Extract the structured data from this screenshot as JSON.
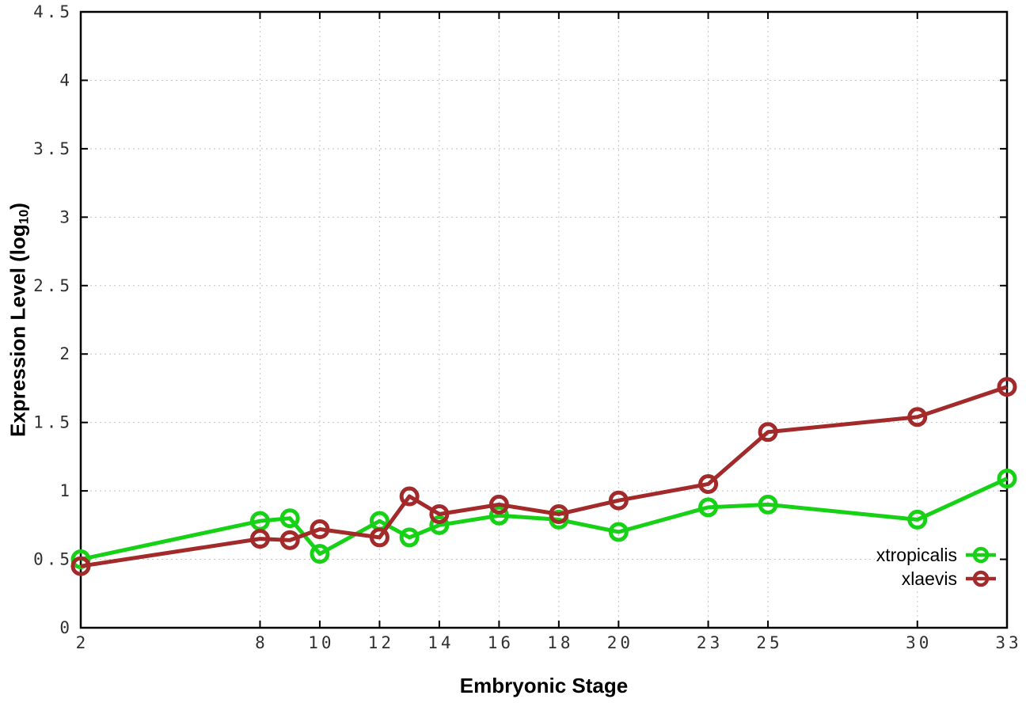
{
  "colors": {
    "background": "#ffffff",
    "axis": "#000000",
    "grid": "#c4c4c4",
    "tick_text": "#303030",
    "green_series": "#17d117",
    "red_series": "#a32a2a"
  },
  "chart_data": {
    "type": "line",
    "title": "",
    "xlabel": "Embryonic Stage",
    "ylabel": "Expression Level (log10)",
    "ylabel_prefix": "Expression Level (log",
    "ylabel_sub": "10",
    "ylabel_suffix": ")",
    "xlim": [
      2,
      33
    ],
    "ylim": [
      0,
      4.5
    ],
    "grid": true,
    "legend_position": "inside-bottom-right",
    "x_ticks": [
      {
        "value": 2,
        "label": "2"
      },
      {
        "value": 8,
        "label": "8"
      },
      {
        "value": 10,
        "label": "10"
      },
      {
        "value": 12,
        "label": "12"
      },
      {
        "value": 14,
        "label": "14"
      },
      {
        "value": 16,
        "label": "16"
      },
      {
        "value": 18,
        "label": "18"
      },
      {
        "value": 20,
        "label": "20"
      },
      {
        "value": 23,
        "label": "23"
      },
      {
        "value": 25,
        "label": "25"
      },
      {
        "value": 30,
        "label": "30"
      },
      {
        "value": 33,
        "label": "33"
      }
    ],
    "y_ticks": [
      {
        "value": 0,
        "label": "0"
      },
      {
        "value": 0.5,
        "label": "0.5"
      },
      {
        "value": 1,
        "label": "1"
      },
      {
        "value": 1.5,
        "label": "1.5"
      },
      {
        "value": 2,
        "label": "2"
      },
      {
        "value": 2.5,
        "label": "2.5"
      },
      {
        "value": 3,
        "label": "3"
      },
      {
        "value": 3.5,
        "label": "3.5"
      },
      {
        "value": 4,
        "label": "4"
      },
      {
        "value": 4.5,
        "label": "4.5"
      }
    ],
    "x": [
      2,
      8,
      9,
      10,
      12,
      13,
      14,
      16,
      18,
      20,
      23,
      25,
      30,
      33
    ],
    "series": [
      {
        "name": "xtropicalis",
        "color": "#17d117",
        "marker": "open-circle",
        "values": [
          0.5,
          0.78,
          0.8,
          0.54,
          0.78,
          0.66,
          0.75,
          0.82,
          0.79,
          0.7,
          0.88,
          0.9,
          0.79,
          1.09
        ]
      },
      {
        "name": "xlaevis",
        "color": "#a32a2a",
        "marker": "open-circle",
        "values": [
          0.45,
          0.65,
          0.64,
          0.72,
          0.66,
          0.96,
          0.83,
          0.9,
          0.83,
          0.93,
          1.05,
          1.43,
          1.54,
          1.76
        ]
      }
    ]
  }
}
